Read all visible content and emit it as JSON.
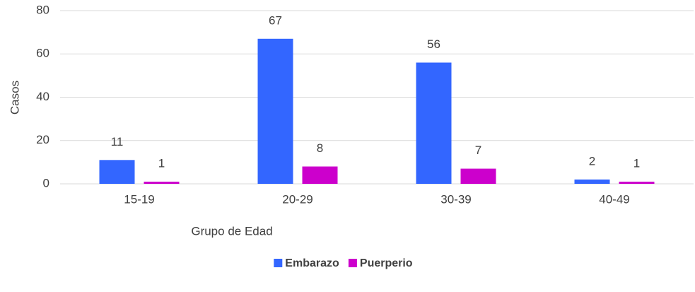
{
  "chart_data": {
    "type": "bar",
    "x_label": "Grupo de Edad",
    "y_label": "Casos",
    "categories": [
      "15-19",
      "20-29",
      "30-39",
      "40-49"
    ],
    "series": [
      {
        "name": "Embarazo",
        "color": "#3366ff",
        "values": [
          11,
          67,
          56,
          2
        ]
      },
      {
        "name": "Puerperio",
        "color": "#cc00cc",
        "values": [
          1,
          8,
          7,
          1
        ]
      }
    ],
    "ylim": [
      0,
      80
    ],
    "yticks": [
      0,
      20,
      40,
      60,
      80
    ],
    "grid": true,
    "legend": "bottom"
  }
}
